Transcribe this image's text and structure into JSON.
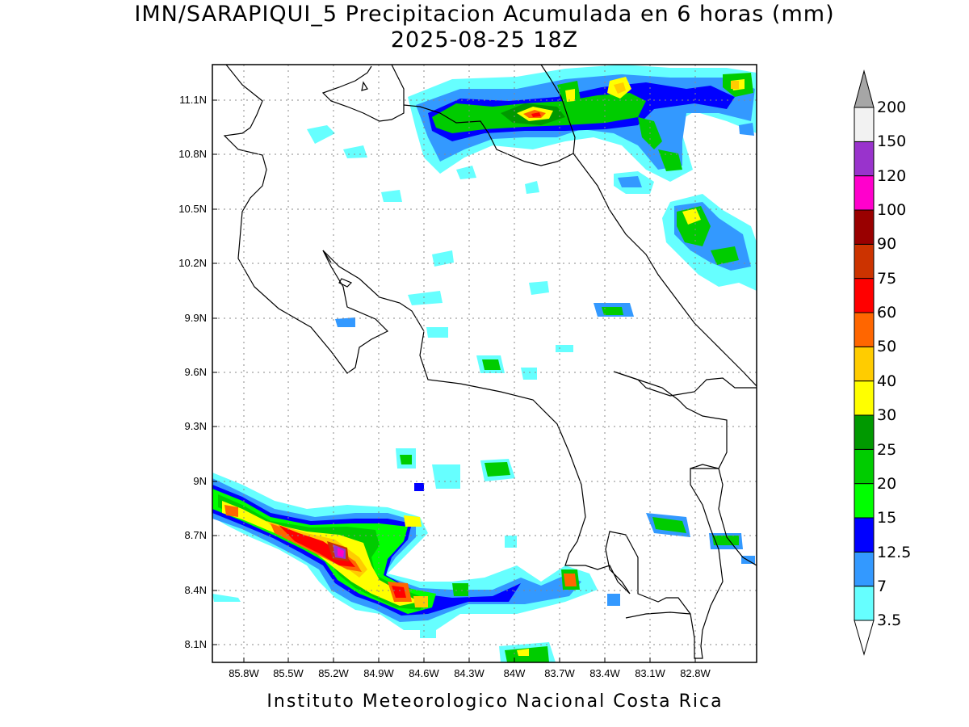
{
  "map": {
    "title_line1": "IMN/SARAPIQUI_5 Precipitacion Acumulada en 6 horas (mm)",
    "title_line2": "2025-08-25 18Z",
    "footer": "Instituto Meteorologico Nacional Costa Rica",
    "x_ticks": [
      "85.8W",
      "85.5W",
      "85.2W",
      "84.9W",
      "84.6W",
      "84.3W",
      "84W",
      "83.7W",
      "83.4W",
      "83.1W",
      "82.8W"
    ],
    "y_ticks": [
      "11.1N",
      "10.8N",
      "10.5N",
      "10.2N",
      "9.9N",
      "9.6N",
      "9.3N",
      "9N",
      "8.7N",
      "8.4N",
      "8.1N"
    ],
    "grid": true
  },
  "colorbar": {
    "labels": [
      "3.5",
      "7",
      "12.5",
      "15",
      "20",
      "25",
      "30",
      "40",
      "50",
      "60",
      "75",
      "90",
      "100",
      "120",
      "150",
      "200"
    ],
    "colors": [
      "#ffffff",
      "#66ffff",
      "#3399ff",
      "#0000ff",
      "#00ff00",
      "#00cc00",
      "#009900",
      "#ffff00",
      "#ffcc00",
      "#ff6600",
      "#ff0000",
      "#cc3300",
      "#990000",
      "#ff00cc",
      "#9933cc",
      "#f2f2f2",
      "#a6a6a6"
    ]
  }
}
